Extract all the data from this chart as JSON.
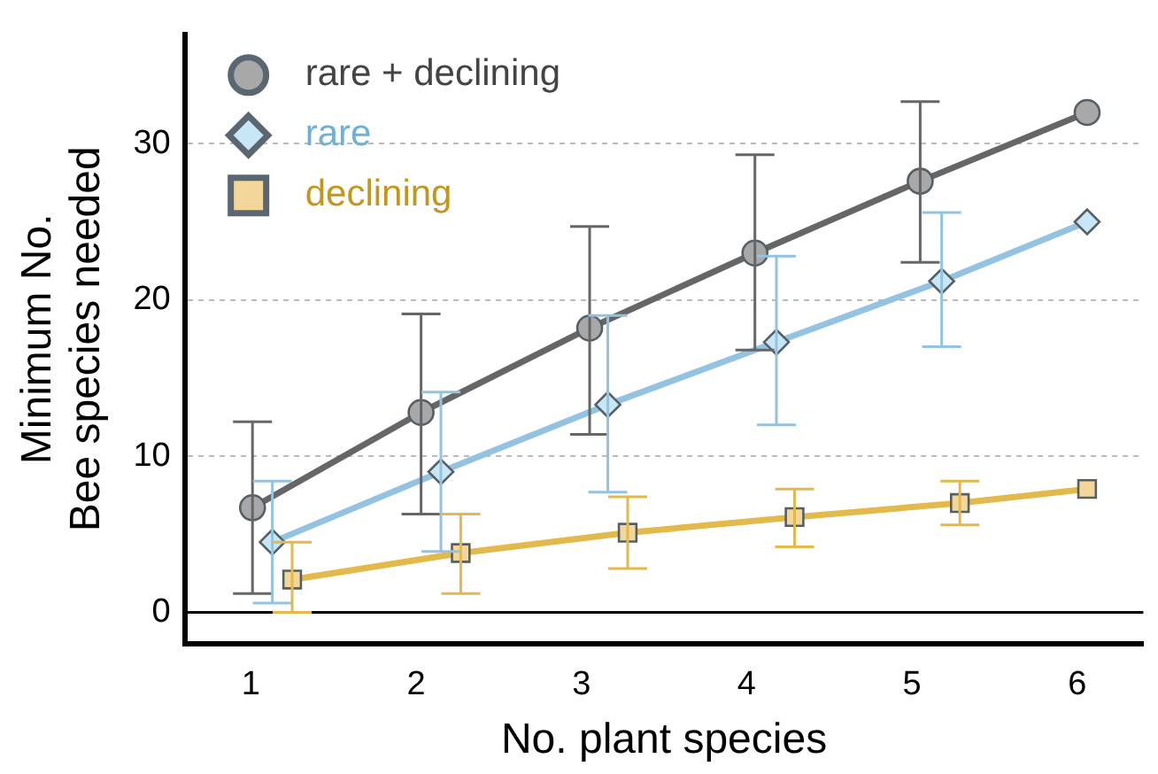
{
  "chart_data": {
    "type": "line",
    "xlabel": "No. plant species",
    "ylabel": "Minimum No.\nBee species needed",
    "xlim": [
      0.6,
      6.4
    ],
    "xticks": [
      1,
      2,
      3,
      4,
      5,
      6
    ],
    "ylim": [
      -2,
      37
    ],
    "yticks": [
      0,
      10,
      20,
      30
    ],
    "grid": "y",
    "legend": "top left",
    "line_style": "solid",
    "ref_lines": [
      {
        "axis": "y",
        "value": 0,
        "color": "#000000",
        "line_style": "solid"
      }
    ],
    "series": [
      {
        "name": "rare + declining",
        "color": "#666666",
        "marker": "circle",
        "x": [
          1.01,
          2.03,
          3.05,
          4.05,
          5.05,
          6.06
        ],
        "values": [
          6.7,
          12.8,
          18.2,
          23.0,
          27.6,
          32.0
        ],
        "errors": [
          [
            1.2,
            12.2
          ],
          [
            6.3,
            19.1
          ],
          [
            11.4,
            24.7
          ],
          [
            16.8,
            29.3
          ],
          [
            22.4,
            32.7
          ],
          null
        ]
      },
      {
        "name": "rare",
        "color": "#93c3e0",
        "marker": "diamond",
        "x": [
          1.13,
          2.15,
          3.16,
          4.18,
          5.18,
          6.06
        ],
        "values": [
          4.5,
          9.0,
          13.3,
          17.3,
          21.2,
          25.0
        ],
        "errors": [
          [
            0.6,
            8.4
          ],
          [
            3.9,
            14.1
          ],
          [
            7.7,
            19.0
          ],
          [
            12.0,
            22.8
          ],
          [
            17.0,
            25.6
          ],
          null
        ]
      },
      {
        "name": "declining",
        "color": "#e2b94a",
        "marker": "square",
        "x": [
          1.25,
          2.27,
          3.28,
          4.29,
          5.29,
          6.06
        ],
        "values": [
          2.1,
          3.8,
          5.1,
          6.1,
          7.0,
          7.9
        ],
        "errors": [
          [
            0,
            4.5
          ],
          [
            1.2,
            6.3
          ],
          [
            2.8,
            7.4
          ],
          [
            4.2,
            7.9
          ],
          [
            5.6,
            8.4
          ],
          null
        ]
      }
    ]
  }
}
